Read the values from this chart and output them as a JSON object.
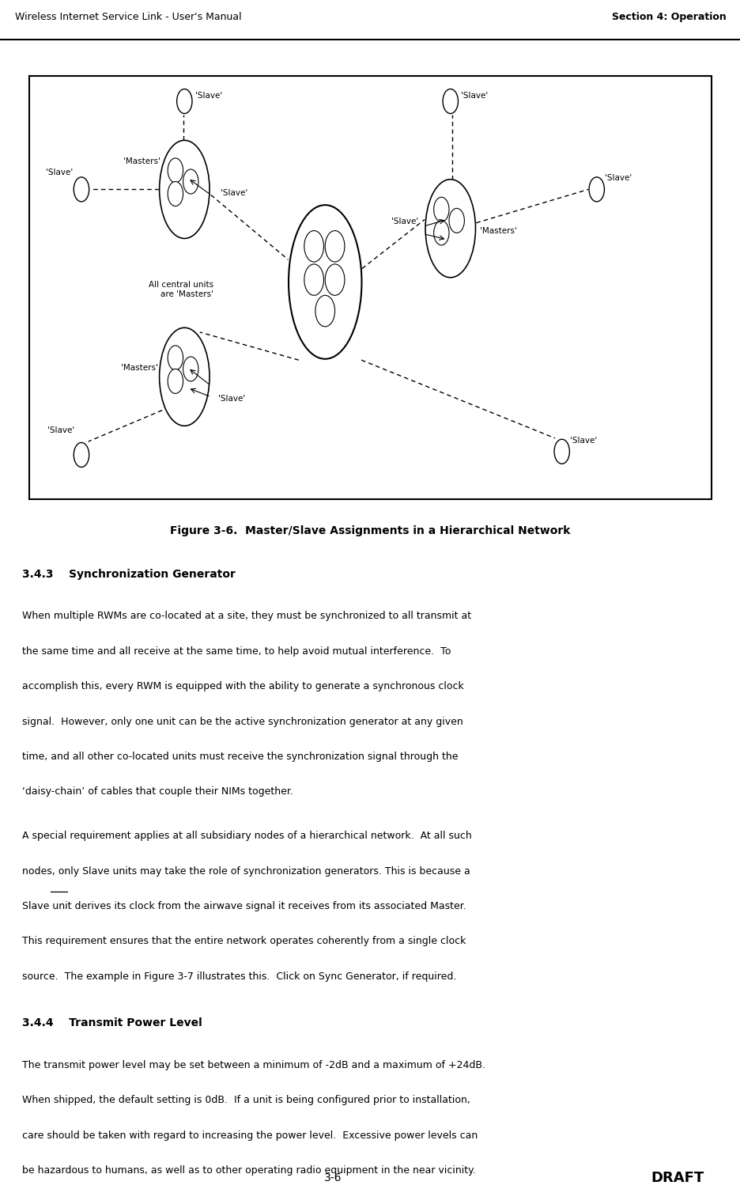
{
  "header_left": "Wireless Internet Service Link - User's Manual",
  "header_right": "Section 4: Operation",
  "figure_caption": "Figure 3-6.  Master/Slave Assignments in a Hierarchical Network",
  "section_343_title": "3.4.3    Synchronization Generator",
  "section_343_para1": "When multiple RWMs are co-located at a site, they must be synchronized to all transmit at\nthe same time and all receive at the same time, to help avoid mutual interference.  To\naccomplish this, every RWM is equipped with the ability to generate a synchronous clock\nsignal.  However, only one unit can be the active synchronization generator at any given\ntime, and all other co-located units must receive the synchronization signal through the\n‘daisy-chain’ of cables that couple their NIMs together.",
  "section_343_para2_before": "A special requirement applies at all subsidiary nodes of a hierarchical network.  At all such\nnodes, ",
  "section_343_para2_underline": "only",
  "section_343_para2_after": " Slave units may take the role of synchronization generators. This is because a\nSlave unit derives its clock from the airwave signal it receives from its associated Master.\nThis requirement ensures that the entire network operates coherently from a single clock\nsource.  The example in Figure 3-7 illustrates this.  Click on Sync Generator, if required.",
  "section_344_title": "3.4.4    Transmit Power Level",
  "section_344_body": "The transmit power level may be set between a minimum of -2dB and a maximum of +24dB.\nWhen shipped, the default setting is 0dB.  If a unit is being configured prior to installation,\ncare should be taken with regard to increasing the power level.  Excessive power levels can\nbe hazardous to humans, as well as to other operating radio equipment in the near vicinity.\nIf possible, setting of the power level should be left until the link is being installed.  In the\nU.S.A., the maximum power level of +24dB is only required when operating at the maximum\nrange specified for the antennas.  Some countries require a lower maximum transmit power\nlevel than the +24dB permitted in the U.S.A.",
  "footer_left": "3-6",
  "footer_right": "DRAFT",
  "bg_color": "#ffffff",
  "text_color": "#000000"
}
